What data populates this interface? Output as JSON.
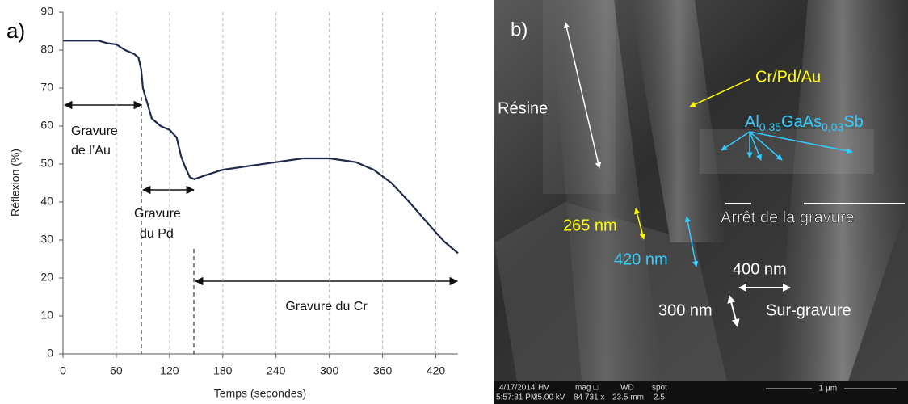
{
  "chart_data": {
    "type": "line",
    "panel_label": "a)",
    "x_label": "Temps (secondes)",
    "y_label": "Réflexion (%)",
    "x": [
      0,
      20,
      40,
      50,
      60,
      70,
      80,
      85,
      88,
      90,
      95,
      100,
      110,
      120,
      128,
      133,
      138,
      143,
      148,
      160,
      180,
      210,
      240,
      270,
      300,
      330,
      350,
      370,
      390,
      405,
      420,
      430,
      445
    ],
    "y": [
      82.5,
      82.5,
      82.5,
      81.8,
      81.5,
      80,
      79,
      78,
      75,
      70,
      66,
      62,
      60,
      59,
      57,
      52,
      49,
      46.5,
      46,
      47,
      48.5,
      49.5,
      50.5,
      51.5,
      51.5,
      50.5,
      48.5,
      45,
      40,
      36,
      32,
      29.5,
      26.5
    ],
    "color": "#1f2a4a",
    "xlim": [
      0,
      445
    ],
    "ylim": [
      0,
      90
    ],
    "xticks": [
      0,
      60,
      120,
      180,
      240,
      300,
      360,
      420
    ],
    "yticks": [
      0,
      10,
      20,
      30,
      40,
      50,
      60,
      70,
      80,
      90
    ],
    "grid": true,
    "annotations": [
      "Gravure",
      "de l’Au",
      "Gravure",
      "du Pd",
      "Gravure du Cr"
    ]
  },
  "panel_b": {
    "panel_label": "b)",
    "labels": [
      "Résine",
      "Cr/Pd/Au",
      "265 nm",
      "420 nm",
      "400 nm",
      "300 nm",
      "Arrêt de la gravure",
      "Sur-gravure"
    ],
    "formula": [
      "Al",
      "0,35",
      "GaAs",
      "0,03",
      "Sb"
    ],
    "info_bar": [
      "4/17/2014",
      "5:57:31 PM",
      "HV",
      "25.00 kV",
      "mag □",
      "84 731 x",
      "WD",
      "23.5 mm",
      "spot",
      "2.5",
      "1 µm"
    ]
  }
}
